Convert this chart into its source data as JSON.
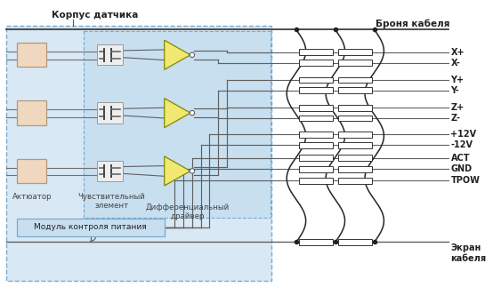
{
  "bg_color": "#ffffff",
  "sensor_box_color": "#d8e8f4",
  "sensor_box_border": "#7aabcf",
  "inner_box_color": "#c8dff0",
  "actuator_color": "#f0d8c0",
  "actuator_border": "#b89878",
  "cap_color": "#e8e8e8",
  "cap_border": "#888888",
  "driver_color": "#f0e870",
  "driver_border": "#a09800",
  "power_box_color": "#c8dff0",
  "power_box_border": "#7aabcf",
  "wire_color": "#606060",
  "dark_wire": "#303030",
  "label_korpus": "Корпус датчика",
  "label_bronya": "Броня кабеля",
  "label_ekran": "Экран\nкабеля",
  "label_actuator": "Актюатор",
  "label_sensitive": "Чувствительный\nэлемент",
  "label_driver": "Дифференциальный\nдрайвер",
  "label_power": "Модуль контроля питания",
  "labels_right": [
    "X+",
    "X-",
    "Y+",
    "Y-",
    "Z+",
    "Z-",
    "+12V",
    "-12V",
    "ACT",
    "GND",
    "TPOW"
  ]
}
